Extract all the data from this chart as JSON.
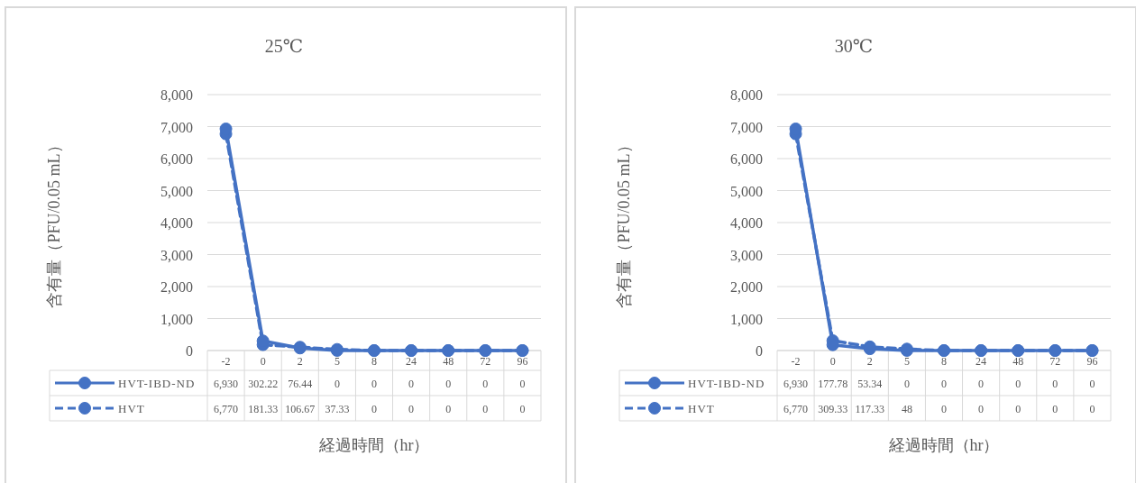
{
  "chart_data": [
    {
      "type": "line",
      "title": "25℃",
      "xlabel": "経過時間（hr）",
      "ylabel": "含有量（PFU/0.05 mL）",
      "categories": [
        "-2",
        "0",
        "2",
        "5",
        "8",
        "24",
        "48",
        "72",
        "96"
      ],
      "ylim": [
        0,
        8000
      ],
      "yticks": [
        {
          "value": 0,
          "label": "0"
        },
        {
          "value": 1000,
          "label": "1,000"
        },
        {
          "value": 2000,
          "label": "2,000"
        },
        {
          "value": 3000,
          "label": "3,000"
        },
        {
          "value": 4000,
          "label": "4,000"
        },
        {
          "value": 5000,
          "label": "5,000"
        },
        {
          "value": 6000,
          "label": "6,000"
        },
        {
          "value": 7000,
          "label": "7,000"
        },
        {
          "value": 8000,
          "label": "8,000"
        }
      ],
      "grid": "y",
      "legend": "bottom",
      "marker": "circle",
      "series": [
        {
          "name": "HVT-IBD-ND",
          "color": "#4472c4",
          "line_style": "solid",
          "values": [
            6930,
            302.22,
            76.44,
            0,
            0,
            0,
            0,
            0,
            0
          ],
          "value_labels": [
            "6,930",
            "302.22",
            "76.44",
            "0",
            "0",
            "0",
            "0",
            "0",
            "0"
          ]
        },
        {
          "name": "HVT",
          "color": "#4472c4",
          "line_style": "dashed",
          "values": [
            6770,
            181.33,
            106.67,
            37.33,
            0,
            0,
            0,
            0,
            0
          ],
          "value_labels": [
            "6,770",
            "181.33",
            "106.67",
            "37.33",
            "0",
            "0",
            "0",
            "0",
            "0"
          ]
        }
      ]
    },
    {
      "type": "line",
      "title": "30℃",
      "xlabel": "経過時間（hr）",
      "ylabel": "含有量（PFU/0.05 mL）",
      "categories": [
        "-2",
        "0",
        "2",
        "5",
        "8",
        "24",
        "48",
        "72",
        "96"
      ],
      "ylim": [
        0,
        8000
      ],
      "yticks": [
        {
          "value": 0,
          "label": "0"
        },
        {
          "value": 1000,
          "label": "1,000"
        },
        {
          "value": 2000,
          "label": "2,000"
        },
        {
          "value": 3000,
          "label": "3,000"
        },
        {
          "value": 4000,
          "label": "4,000"
        },
        {
          "value": 5000,
          "label": "5,000"
        },
        {
          "value": 6000,
          "label": "6,000"
        },
        {
          "value": 7000,
          "label": "7,000"
        },
        {
          "value": 8000,
          "label": "8,000"
        }
      ],
      "grid": "y",
      "legend": "bottom",
      "marker": "circle",
      "series": [
        {
          "name": "HVT-IBD-ND",
          "color": "#4472c4",
          "line_style": "solid",
          "values": [
            6930,
            177.78,
            53.34,
            0,
            0,
            0,
            0,
            0,
            0
          ],
          "value_labels": [
            "6,930",
            "177.78",
            "53.34",
            "0",
            "0",
            "0",
            "0",
            "0",
            "0"
          ]
        },
        {
          "name": "HVT",
          "color": "#4472c4",
          "line_style": "dashed",
          "values": [
            6770,
            309.33,
            117.33,
            48,
            0,
            0,
            0,
            0,
            0
          ],
          "value_labels": [
            "6,770",
            "309.33",
            "117.33",
            "48",
            "0",
            "0",
            "0",
            "0",
            "0"
          ]
        }
      ]
    }
  ]
}
